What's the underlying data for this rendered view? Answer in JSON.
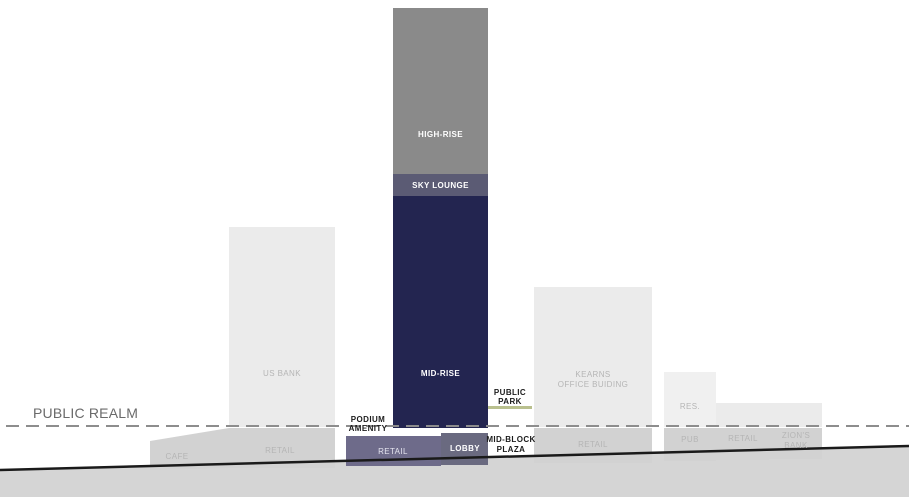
{
  "public_realm_label": "PUBLIC REALM",
  "labels": {
    "high_rise": "HIGH-RISE",
    "sky_lounge": "SKY LOUNGE",
    "mid_rise": "MID-RISE",
    "us_bank": "US BANK",
    "kearns_line1": "KEARNS",
    "kearns_line2": "OFFICE BUIDING",
    "public_park_line1": "PUBLIC",
    "public_park_line2": "PARK",
    "podium_line1": "PODIUM",
    "podium_line2": "AMENITY",
    "res": "RES.",
    "cafe": "CAFE",
    "retail_1": "RETAIL",
    "retail_2": "RETAIL",
    "lobby": "LOBBY",
    "midblock_line1": "MID-BLOCK",
    "midblock_line2": "PLAZA",
    "retail_3": "RETAIL",
    "pub": "PUB",
    "retail_4": "RETAIL",
    "zions_line1": "ZION'S",
    "zions_line2": "BANK"
  },
  "colors": {
    "high_rise": "#8a8a8a",
    "sky_lounge": "#5b5b74",
    "mid_rise": "#232550",
    "tower_retail": "#6e6b8a",
    "lobby": "#6a6a80",
    "background_building": "#ebebeb",
    "podium_retail": "#d2d2d2",
    "ground": "#d5d5d5",
    "park": "#b9c08e"
  }
}
